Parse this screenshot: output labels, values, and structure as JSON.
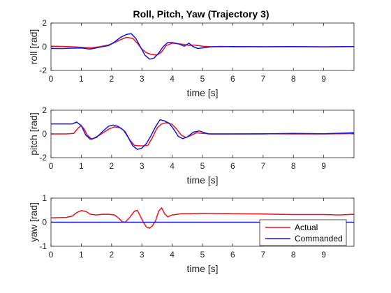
{
  "figure": {
    "title": "Roll, Pitch, Yaw (Trajectory 3)"
  },
  "colors": {
    "actual": "#e8141b",
    "commanded": "#1414e6"
  },
  "legend": {
    "placement": "bottom-right",
    "entries": [
      "Actual",
      "Commanded"
    ]
  },
  "chart_data": [
    {
      "type": "line",
      "name": "roll",
      "title": "Roll, Pitch, Yaw (Trajectory 3)",
      "xlabel": "time [s]",
      "ylabel": "roll [rad]",
      "xlim": [
        0,
        10
      ],
      "ylim": [
        -2,
        2
      ],
      "xticks": [
        0,
        1,
        2,
        3,
        4,
        5,
        6,
        7,
        8,
        9
      ],
      "yticks": [
        -2,
        0,
        2
      ],
      "grid": false,
      "series": [
        {
          "name": "Actual",
          "x": [
            0,
            0.4,
            0.7,
            1.0,
            1.3,
            1.6,
            1.9,
            2.1,
            2.3,
            2.5,
            2.7,
            2.85,
            3.0,
            3.15,
            3.3,
            3.5,
            3.65,
            3.8,
            4.0,
            4.2,
            4.4,
            4.55,
            4.7,
            4.85,
            5.0,
            5.3,
            5.6,
            6.0,
            7.0,
            8.0,
            9.0,
            10.0
          ],
          "y": [
            0.05,
            0.03,
            0.0,
            -0.05,
            -0.1,
            0.0,
            0.15,
            0.35,
            0.6,
            0.8,
            0.7,
            0.3,
            -0.2,
            -0.5,
            -0.65,
            -0.7,
            -0.45,
            0.1,
            0.3,
            0.25,
            0.2,
            0.1,
            0.15,
            0.1,
            0.05,
            0.0,
            0.03,
            0.0,
            0.0,
            0.0,
            0.0,
            0.02
          ]
        },
        {
          "name": "Commanded",
          "x": [
            0,
            0.4,
            0.7,
            1.0,
            1.3,
            1.6,
            1.9,
            2.1,
            2.3,
            2.5,
            2.65,
            2.8,
            2.95,
            3.1,
            3.25,
            3.4,
            3.55,
            3.7,
            3.85,
            4.0,
            4.2,
            4.4,
            4.55,
            4.7,
            4.85,
            5.0,
            5.3,
            5.6,
            6.0,
            7.0,
            8.0,
            9.0,
            10.0
          ],
          "y": [
            -0.15,
            -0.15,
            -0.12,
            -0.1,
            -0.2,
            -0.05,
            0.1,
            0.4,
            0.8,
            1.05,
            1.1,
            0.7,
            0.0,
            -0.7,
            -1.05,
            -0.95,
            -0.55,
            0.0,
            0.35,
            0.35,
            0.25,
            0.05,
            0.3,
            0.0,
            -0.15,
            -0.1,
            0.0,
            0.0,
            0.02,
            0.0,
            0.02,
            -0.02,
            0.02
          ]
        }
      ]
    },
    {
      "type": "line",
      "name": "pitch",
      "xlabel": "time [s]",
      "ylabel": "pitch [rad]",
      "xlim": [
        0,
        10
      ],
      "ylim": [
        -2,
        2
      ],
      "xticks": [
        0,
        1,
        2,
        3,
        4,
        5,
        6,
        7,
        8,
        9
      ],
      "yticks": [
        -2,
        0,
        2
      ],
      "grid": false,
      "series": [
        {
          "name": "Actual",
          "x": [
            0,
            0.5,
            0.75,
            0.9,
            1.0,
            1.1,
            1.2,
            1.35,
            1.6,
            1.9,
            2.1,
            2.3,
            2.45,
            2.6,
            2.75,
            2.9,
            3.05,
            3.2,
            3.35,
            3.5,
            3.65,
            3.8,
            4.0,
            4.15,
            4.3,
            4.45,
            4.6,
            4.8,
            5.0,
            5.3,
            6.0,
            7.0,
            8.0,
            9.0,
            10.0
          ],
          "y": [
            0.0,
            0.0,
            0.05,
            0.5,
            0.7,
            0.4,
            -0.1,
            -0.45,
            -0.1,
            0.4,
            0.6,
            0.5,
            0.2,
            -0.5,
            -0.95,
            -1.0,
            -1.0,
            -0.95,
            -0.3,
            0.5,
            0.85,
            0.95,
            0.8,
            0.4,
            -0.1,
            -0.3,
            -0.15,
            0.1,
            0.05,
            0.0,
            0.0,
            0.02,
            0.0,
            0.0,
            0.03
          ]
        },
        {
          "name": "Commanded",
          "x": [
            0,
            0.4,
            0.7,
            0.85,
            1.0,
            1.15,
            1.3,
            1.5,
            1.7,
            1.9,
            2.05,
            2.2,
            2.4,
            2.55,
            2.7,
            2.85,
            3.0,
            3.15,
            3.3,
            3.45,
            3.6,
            3.75,
            3.9,
            4.05,
            4.2,
            4.35,
            4.5,
            4.7,
            4.9,
            5.2,
            6.0,
            7.0,
            8.0,
            9.0,
            10.0
          ],
          "y": [
            0.85,
            0.85,
            0.85,
            1.0,
            0.7,
            -0.1,
            -0.45,
            -0.3,
            0.2,
            0.65,
            0.75,
            0.65,
            0.3,
            -0.3,
            -1.0,
            -1.3,
            -1.2,
            -0.8,
            -0.15,
            0.6,
            1.2,
            1.1,
            0.9,
            0.4,
            -0.2,
            -0.4,
            -0.25,
            0.15,
            0.25,
            0.0,
            0.0,
            0.0,
            0.05,
            0.02,
            0.1
          ]
        }
      ]
    },
    {
      "type": "line",
      "name": "yaw",
      "xlabel": "time [s]",
      "ylabel": "yaw [rad]",
      "xlim": [
        0,
        10
      ],
      "ylim": [
        -1,
        1
      ],
      "xticks": [
        0,
        1,
        2,
        3,
        4,
        5,
        6,
        7,
        8,
        9
      ],
      "yticks": [
        -1,
        0,
        1
      ],
      "grid": false,
      "series": [
        {
          "name": "Actual",
          "x": [
            0,
            0.5,
            0.7,
            0.85,
            1.0,
            1.15,
            1.3,
            1.5,
            1.7,
            1.9,
            2.1,
            2.25,
            2.35,
            2.45,
            2.6,
            2.75,
            2.85,
            2.95,
            3.05,
            3.15,
            3.25,
            3.35,
            3.45,
            3.55,
            3.65,
            3.75,
            3.85,
            4.0,
            4.3,
            4.6,
            5.0,
            6.0,
            7.0,
            8.0,
            9.0,
            9.5,
            10.0
          ],
          "y": [
            0.18,
            0.2,
            0.25,
            0.4,
            0.48,
            0.45,
            0.33,
            0.3,
            0.33,
            0.33,
            0.3,
            0.15,
            0.02,
            0.0,
            0.2,
            0.45,
            0.5,
            0.25,
            0.0,
            -0.2,
            -0.25,
            -0.15,
            0.05,
            0.45,
            0.6,
            0.35,
            0.22,
            0.3,
            0.35,
            0.35,
            0.37,
            0.35,
            0.34,
            0.32,
            0.32,
            0.3,
            0.33
          ]
        },
        {
          "name": "Commanded",
          "x": [
            0,
            10
          ],
          "y": [
            0.0,
            0.0
          ]
        }
      ]
    }
  ]
}
